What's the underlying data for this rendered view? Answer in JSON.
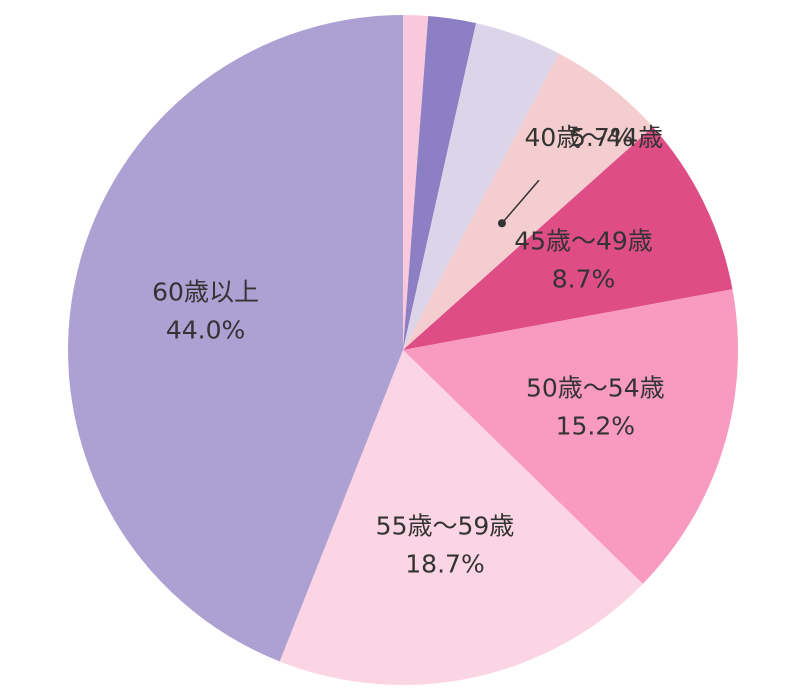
{
  "chart_data": {
    "type": "pie",
    "categories": [
      null,
      null,
      null,
      "40歳〜44歳",
      "45歳〜49歳",
      "50歳〜54歳",
      "55歳〜59歳",
      "60歳以上"
    ],
    "values": [
      1.2,
      2.3,
      4.2,
      5.7,
      8.7,
      15.2,
      18.7,
      44.0
    ],
    "value_labels": [
      null,
      null,
      null,
      "5.7%",
      "8.7%",
      "15.2%",
      "18.7%",
      "44.0%"
    ],
    "colors": [
      "#f9c8dc",
      "#8d7fc4",
      "#dcd5ea",
      "#f3cdcf",
      "#de4d86",
      "#f99bc0",
      "#fcd5e5",
      "#ada1d3"
    ],
    "label_colors": [
      "#333333",
      "#333333",
      "#333333",
      "#333333",
      "#ffffff",
      "#333333",
      "#333333",
      "#333333"
    ]
  }
}
